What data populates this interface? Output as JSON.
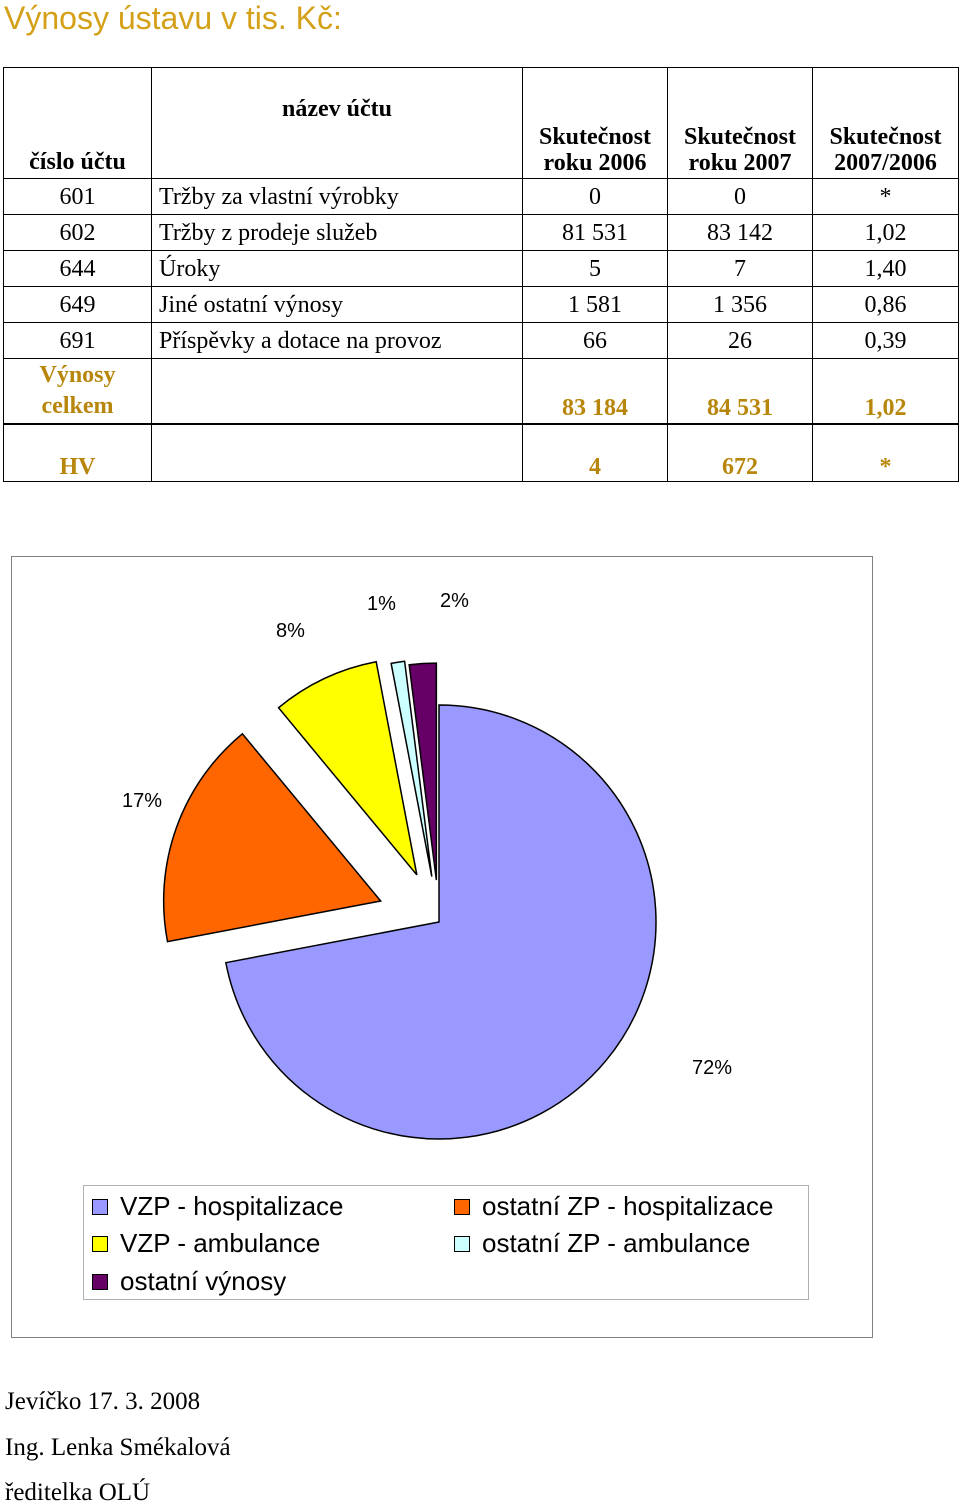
{
  "title": "Výnosy ústavu v tis. Kč:",
  "table": {
    "headers": {
      "account_number": "číslo účtu",
      "account_name": "název účtu",
      "col2006_line1": "Skutečnost",
      "col2006_line2": "roku 2006",
      "col2007_line1": "Skutečnost",
      "col2007_line2": "roku 2007",
      "ratio_line1": "Skutečnost",
      "ratio_line2": "2007/2006"
    },
    "rows": [
      {
        "account": "601",
        "name": "Tržby za vlastní výrobky",
        "y2006": "0",
        "y2007": "0",
        "ratio": "*"
      },
      {
        "account": "602",
        "name": "Tržby z prodeje služeb",
        "y2006": "81 531",
        "y2007": "83 142",
        "ratio": "1,02"
      },
      {
        "account": "644",
        "name": "Úroky",
        "y2006": "5",
        "y2007": "7",
        "ratio": "1,40"
      },
      {
        "account": "649",
        "name": "Jiné ostatní výnosy",
        "y2006": "1 581",
        "y2007": "1 356",
        "ratio": "0,86"
      },
      {
        "account": "691",
        "name": "Příspěvky a dotace na provoz",
        "y2006": "66",
        "y2007": "26",
        "ratio": "0,39"
      }
    ],
    "total": {
      "label_line1": "Výnosy",
      "label_line2": "celkem",
      "y2006": "83 184",
      "y2007": "84 531",
      "ratio": "1,02"
    }
  },
  "hv": {
    "label": "HV",
    "y2006": "4",
    "y2007": "672",
    "ratio": "*"
  },
  "chart_data": {
    "type": "pie",
    "categories": [
      "VZP -  hospitalizace",
      "ostatní ZP - hospitalizace",
      "VZP -  ambulance",
      "ostatní ZP - ambulance",
      "ostatní výnosy"
    ],
    "values": [
      72,
      17,
      8,
      1,
      2
    ],
    "labels": [
      "72%",
      "17%",
      "8%",
      "1%",
      "2%"
    ],
    "colors": [
      "#9999ff",
      "#ff6600",
      "#ffff00",
      "#ccffff",
      "#660066"
    ],
    "legend_position": "bottom"
  },
  "footer": {
    "place_date": "Jevíčko  17. 3. 2008",
    "name": "Ing. Lenka Smékalová",
    "role": "ředitelka OLÚ"
  }
}
